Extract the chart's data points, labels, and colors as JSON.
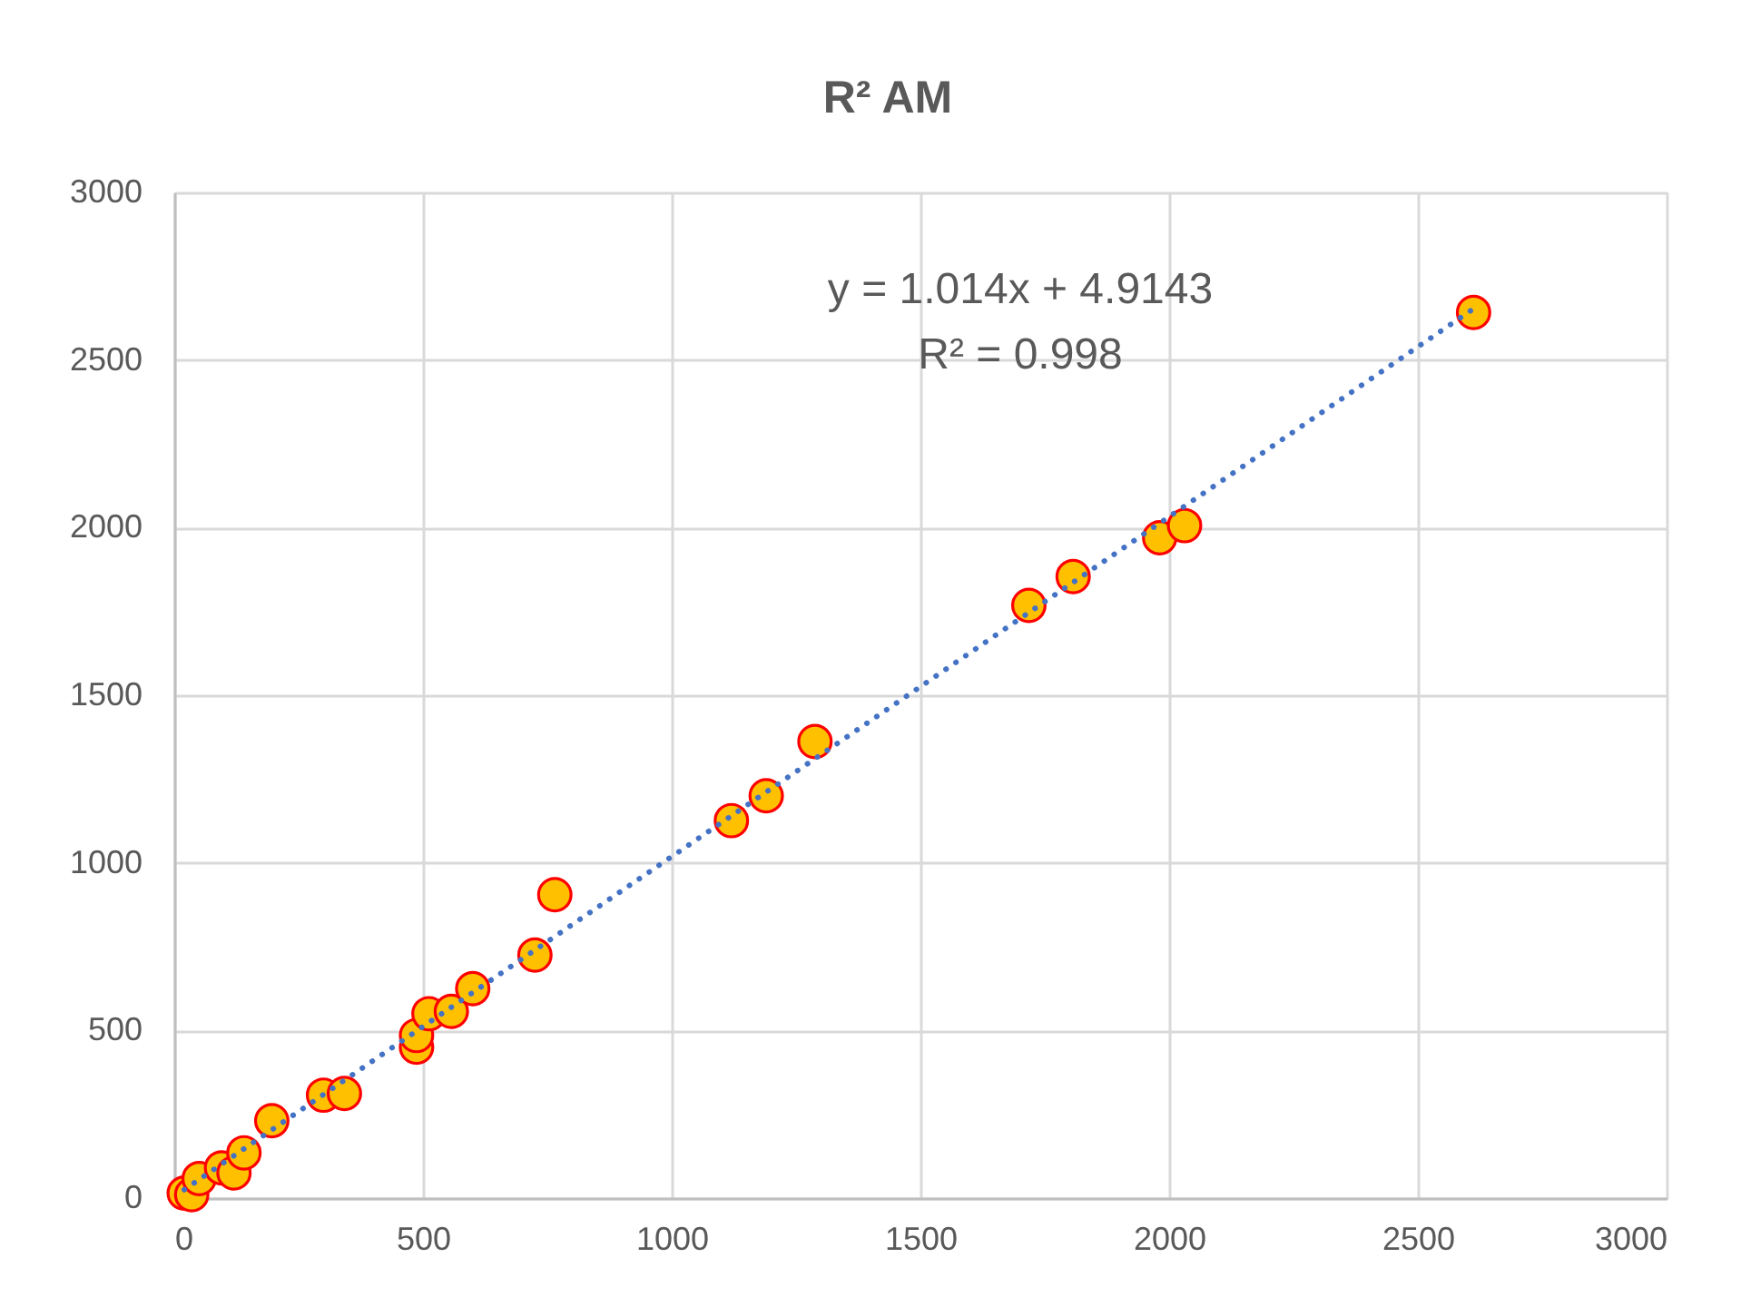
{
  "chart_data": {
    "type": "scatter",
    "title": "R² AM",
    "xlim": [
      0,
      3000
    ],
    "ylim": [
      0,
      3000
    ],
    "xticks": [
      0,
      500,
      1000,
      1500,
      2000,
      2500,
      3000
    ],
    "yticks": [
      0,
      500,
      1000,
      1500,
      2000,
      2500,
      3000
    ],
    "grid": true,
    "marker": "circle",
    "annotations": [
      "y = 1.014x + 4.9143",
      "R² = 0.998"
    ],
    "series": [
      {
        "color": "#ffc000",
        "x": [
          20,
          35,
          50,
          95,
          120,
          140,
          196,
          300,
          342,
          487,
          487,
          512,
          557,
          600,
          725,
          765,
          1120,
          1190,
          1288,
          1718,
          1807,
          1981,
          2031,
          2612
        ],
        "values": [
          15,
          10,
          58,
          90,
          75,
          135,
          231,
          307,
          312,
          450,
          485,
          550,
          557,
          625,
          725,
          905,
          1126,
          1200,
          1362,
          1768,
          1854,
          1970,
          2006,
          2642
        ]
      },
      {
        "type": "line",
        "color": "#4472c4",
        "line_style": "dotted",
        "marker": "none",
        "x": [
          20,
          2612
        ],
        "values": [
          25,
          2653
        ]
      }
    ]
  }
}
